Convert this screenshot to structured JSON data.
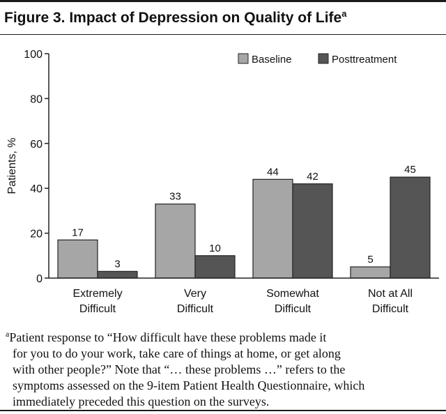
{
  "figure": {
    "title": "Figure 3. Impact of Depression on Quality of Life",
    "title_superscript": "a"
  },
  "chart_data": {
    "type": "bar",
    "ylabel": "Patients, %",
    "ylim": [
      0,
      100
    ],
    "yticks": [
      0,
      20,
      40,
      60,
      80,
      100
    ],
    "categories": [
      [
        "Extremely",
        "Difficult"
      ],
      [
        "Very",
        "Difficult"
      ],
      [
        "Somewhat",
        "Difficult"
      ],
      [
        "Not at All",
        "Difficult"
      ]
    ],
    "series": [
      {
        "name": "Baseline",
        "values": [
          17,
          33,
          44,
          5
        ],
        "color": "#a6a6a6"
      },
      {
        "name": "Posttreatment",
        "values": [
          3,
          10,
          42,
          45
        ],
        "color": "#555555"
      }
    ],
    "data_labels": true,
    "legend_position": "top-right",
    "grid": false
  },
  "footnote": {
    "marker": "a",
    "lines": [
      "Patient response to “How difficult have these problems made it",
      "for you to do your work, take care of things at home, or get along",
      "with other people?” Note that “… these problems …” refers to the",
      "symptoms assessed on the 9-item Patient Health Questionnaire, which",
      "immediately preceded this question on the surveys."
    ]
  }
}
